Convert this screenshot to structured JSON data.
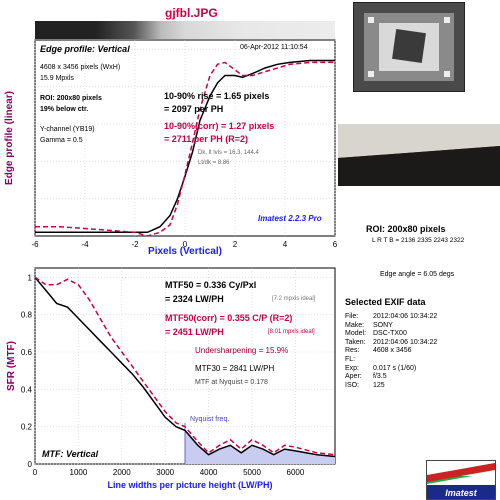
{
  "header": {
    "filename": "gjfbl.JPG"
  },
  "edge_panel": {
    "title": "Edge profile: Vertical",
    "date": "06-Apr-2012 11:10:54",
    "info": [
      "4608 x 3456 pixels (WxH)",
      "15.9 Mpxls"
    ],
    "roi": [
      "ROI: 200x80 pixels",
      "19% below ctr."
    ],
    "channel": [
      "Y-channel  (YB19)",
      "Gamma = 0.5"
    ],
    "rise_lines": [
      "10-90% rise = 1.65 pixels",
      "= 2097 per PH"
    ],
    "corr_lines": [
      "10-90%(corr) = 1.27 pixels",
      "= 2711 per PH  (R=2)"
    ],
    "small_lines": [
      "Dk, lt lvls = 16.3, 144.4",
      "Lt/dk = 8.86"
    ],
    "branding": "Imatest 2.2.3 Pro"
  },
  "mtf_panel": {
    "mtf50_lines": [
      "MTF50 = 0.336 Cy/Pxl",
      "= 2324 LW/PH"
    ],
    "mtf50_ideal": "[7.2 mpxls ideal]",
    "corr_lines": [
      "MTF50(corr) = 0.355 C/P  (R=2)",
      "= 2451 LW/PH"
    ],
    "corr_ideal": "[8.01 mpxls ideal]",
    "undersharp": "Undersharpening = 15.9%",
    "mtf30": "MTF30 = 2841 LW/PH",
    "nyq_value": "MTF at Nyquist = 0.178",
    "nyquist_label": "Nyquist freq.",
    "title": "MTF: Vertical"
  },
  "right_panel": {
    "roi_title": "ROI: 200x80 pixels",
    "lrtb": "L R T B = 2136 2335  2243 2322",
    "edge_angle": "Edge angle = 6.05 degs",
    "exif_title": "Selected EXIF data",
    "exif": [
      {
        "k": "File:",
        "v": "2012:04:06 10:34:22"
      },
      {
        "k": "Make:",
        "v": "SONY"
      },
      {
        "k": "Model:",
        "v": "DSC-TX00"
      },
      {
        "k": "Taken:",
        "v": "2012:04:06 10:34:22"
      },
      {
        "k": "Res:",
        "v": "4608 x 3456"
      },
      {
        "k": "FL:",
        "v": ""
      },
      {
        "k": "Exp:",
        "v": "0.017 s  (1/60)"
      },
      {
        "k": "Aper:",
        "v": "f/3.5"
      },
      {
        "k": "ISO:",
        "v": "125"
      }
    ],
    "logo_text": "Imatest"
  },
  "chart_data": [
    {
      "type": "line",
      "title": "Edge profile: Vertical",
      "xlabel": "Pixels (Vertical)",
      "ylabel": "Edge profile (linear)",
      "xlim": [
        -6,
        6
      ],
      "ylim": [
        0,
        1.05
      ],
      "xticks": [
        -6,
        -4,
        -2,
        0,
        2,
        4,
        6
      ],
      "grid": true,
      "series": [
        {
          "color": "#000000",
          "style": "solid",
          "points": [
            [
              -6,
              0.02
            ],
            [
              -5,
              0.02
            ],
            [
              -4,
              0.02
            ],
            [
              -3,
              0.02
            ],
            [
              -2,
              0.02
            ],
            [
              -1.5,
              0.02
            ],
            [
              -1,
              0.05
            ],
            [
              -0.6,
              0.11
            ],
            [
              -0.3,
              0.2
            ],
            [
              0,
              0.32
            ],
            [
              0.3,
              0.45
            ],
            [
              0.6,
              0.62
            ],
            [
              1,
              0.75
            ],
            [
              1.3,
              0.82
            ],
            [
              1.6,
              0.86
            ],
            [
              2,
              0.86
            ],
            [
              2.3,
              0.85
            ],
            [
              2.7,
              0.87
            ],
            [
              3.2,
              0.9
            ],
            [
              3.7,
              0.92
            ],
            [
              4.2,
              0.93
            ],
            [
              5,
              0.94
            ],
            [
              6,
              0.94
            ]
          ]
        },
        {
          "color": "#cc0044",
          "style": "dashed",
          "points": [
            [
              -6,
              0.05
            ],
            [
              -5,
              0.05
            ],
            [
              -4,
              0.04
            ],
            [
              -3,
              0.03
            ],
            [
              -2,
              0.02
            ],
            [
              -1.5,
              0.0
            ],
            [
              -1,
              0.02
            ],
            [
              -0.6,
              0.06
            ],
            [
              -0.3,
              0.17
            ],
            [
              0,
              0.33
            ],
            [
              0.3,
              0.5
            ],
            [
              0.6,
              0.68
            ],
            [
              1,
              0.86
            ],
            [
              1.3,
              0.92
            ],
            [
              1.6,
              0.93
            ],
            [
              2,
              0.89
            ],
            [
              2.3,
              0.86
            ],
            [
              2.7,
              0.86
            ],
            [
              3.2,
              0.88
            ],
            [
              3.7,
              0.9
            ],
            [
              4.2,
              0.92
            ],
            [
              5,
              0.93
            ],
            [
              6,
              0.93
            ]
          ]
        }
      ]
    },
    {
      "type": "line",
      "title": "MTF: Vertical",
      "xlabel": "Line widths per picture height (LW/PH)",
      "ylabel": "SFR (MTF)",
      "xlim": [
        0,
        6912
      ],
      "ylim": [
        0,
        1.05
      ],
      "xticks": [
        0,
        1000,
        2000,
        3000,
        4000,
        5000,
        6000
      ],
      "yticks": [
        0,
        0.2,
        0.4,
        0.6,
        0.8,
        1
      ],
      "grid": true,
      "nyquist_x": 3456,
      "series": [
        {
          "color": "#000000",
          "style": "solid",
          "points": [
            [
              0,
              1.0
            ],
            [
              250,
              0.93
            ],
            [
              500,
              0.86
            ],
            [
              750,
              0.84
            ],
            [
              1000,
              0.78
            ],
            [
              1250,
              0.72
            ],
            [
              1500,
              0.66
            ],
            [
              1750,
              0.6
            ],
            [
              2000,
              0.54
            ],
            [
              2250,
              0.48
            ],
            [
              2500,
              0.41
            ],
            [
              2750,
              0.33
            ],
            [
              3000,
              0.25
            ],
            [
              3250,
              0.2
            ],
            [
              3456,
              0.18
            ],
            [
              3750,
              0.1
            ],
            [
              4000,
              0.05
            ],
            [
              4250,
              0.08
            ],
            [
              4500,
              0.1
            ],
            [
              4750,
              0.06
            ],
            [
              5000,
              0.1
            ],
            [
              5250,
              0.08
            ],
            [
              5500,
              0.05
            ],
            [
              5750,
              0.08
            ],
            [
              6000,
              0.07
            ],
            [
              6500,
              0.05
            ],
            [
              6912,
              0.04
            ]
          ]
        },
        {
          "color": "#cc0044",
          "style": "dashed",
          "points": [
            [
              0,
              1.0
            ],
            [
              250,
              0.96
            ],
            [
              500,
              0.96
            ],
            [
              750,
              0.99
            ],
            [
              1000,
              0.96
            ],
            [
              1250,
              0.88
            ],
            [
              1500,
              0.78
            ],
            [
              1750,
              0.68
            ],
            [
              2000,
              0.6
            ],
            [
              2250,
              0.52
            ],
            [
              2500,
              0.44
            ],
            [
              2750,
              0.36
            ],
            [
              3000,
              0.28
            ],
            [
              3250,
              0.22
            ],
            [
              3456,
              0.2
            ],
            [
              3750,
              0.12
            ],
            [
              4000,
              0.06
            ],
            [
              4250,
              0.1
            ],
            [
              4500,
              0.13
            ],
            [
              4750,
              0.08
            ],
            [
              5000,
              0.13
            ],
            [
              5250,
              0.1
            ],
            [
              5500,
              0.06
            ],
            [
              5750,
              0.1
            ],
            [
              6000,
              0.09
            ],
            [
              6500,
              0.06
            ],
            [
              6912,
              0.05
            ]
          ]
        }
      ]
    }
  ]
}
